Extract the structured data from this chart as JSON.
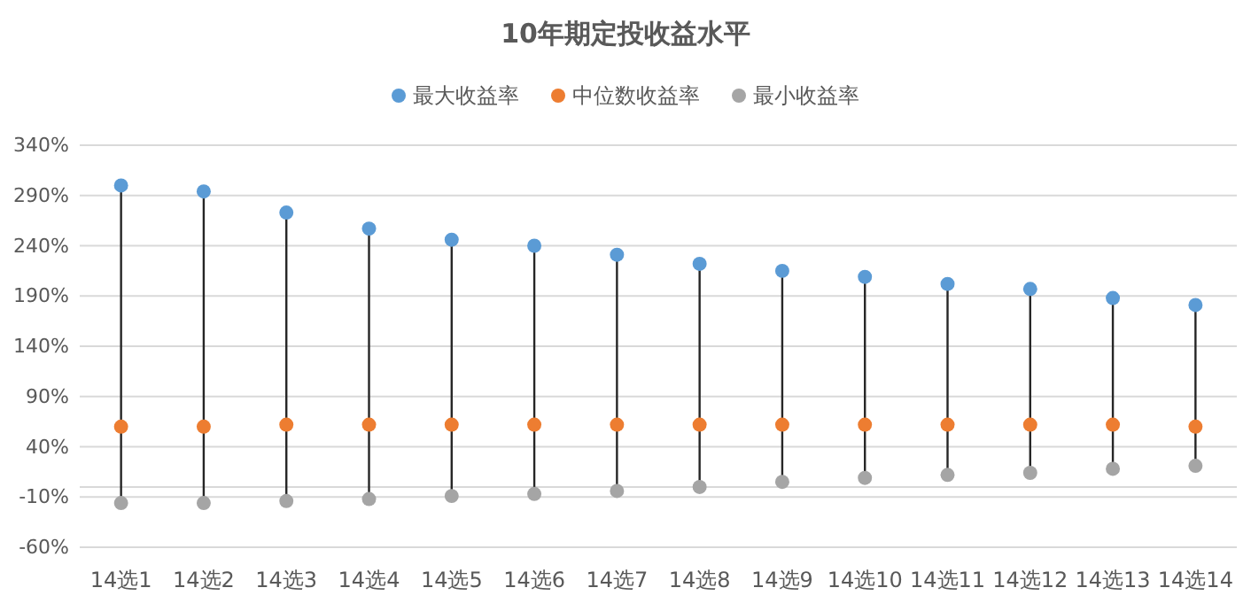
{
  "chart_data": {
    "type": "scatter",
    "title": "10年期定投收益水平",
    "categories": [
      "14选1",
      "14选2",
      "14选3",
      "14选4",
      "14选5",
      "14选6",
      "14选7",
      "14选8",
      "14选9",
      "14选10",
      "14选11",
      "14选12",
      "14选13",
      "14选14"
    ],
    "series": [
      {
        "name": "最大收益率",
        "color": "#5b9bd5",
        "values": [
          300,
          294,
          273,
          257,
          246,
          240,
          231,
          222,
          215,
          209,
          202,
          197,
          188,
          181
        ]
      },
      {
        "name": "中位数收益率",
        "color": "#ed7d31",
        "values": [
          60,
          60,
          62,
          62,
          62,
          62,
          62,
          62,
          62,
          62,
          62,
          62,
          62,
          60
        ]
      },
      {
        "name": "最小收益率",
        "color": "#a5a5a5",
        "values": [
          -16,
          -16,
          -14,
          -12,
          -9,
          -7,
          -4,
          0,
          5,
          9,
          12,
          14,
          18,
          21
        ]
      }
    ],
    "ylim": [
      -60,
      340
    ],
    "yticks": [
      {
        "value": -60,
        "label": "-60%"
      },
      {
        "value": -10,
        "label": "-10%"
      },
      {
        "value": 40,
        "label": "40%"
      },
      {
        "value": 90,
        "label": "90%"
      },
      {
        "value": 140,
        "label": "140%"
      },
      {
        "value": 190,
        "label": "190%"
      },
      {
        "value": 240,
        "label": "240%"
      },
      {
        "value": 290,
        "label": "290%"
      },
      {
        "value": 340,
        "label": "340%"
      }
    ],
    "grid": "y",
    "legend": "top",
    "marker": "circle"
  }
}
